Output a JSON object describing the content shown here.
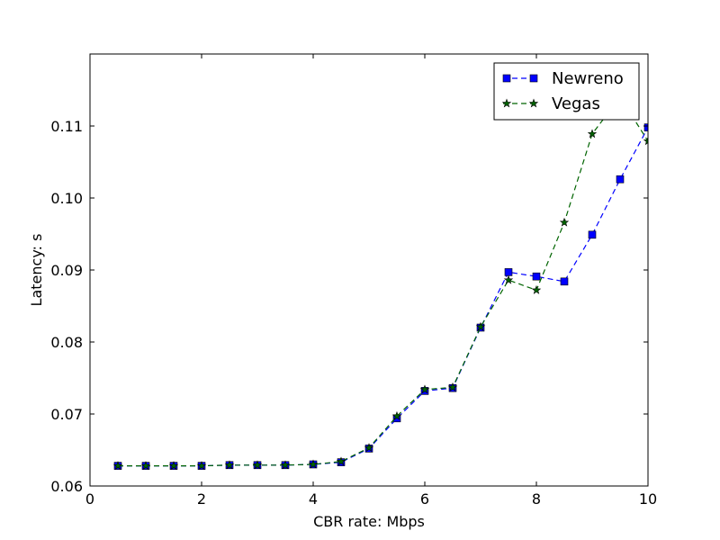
{
  "chart_data": {
    "type": "line",
    "title": "",
    "xlabel": "CBR rate: Mbps",
    "ylabel": "Latency: s",
    "xlim": [
      0,
      10
    ],
    "ylim": [
      0.06,
      0.12
    ],
    "x_ticks": [
      0,
      2,
      4,
      6,
      8,
      10
    ],
    "y_ticks": [
      0.06,
      0.07,
      0.08,
      0.09,
      0.1,
      0.11
    ],
    "x_tick_labels": [
      "0",
      "2",
      "4",
      "6",
      "8",
      "10"
    ],
    "y_tick_labels": [
      "0.06",
      "0.07",
      "0.08",
      "0.09",
      "0.10",
      "0.11"
    ],
    "grid": false,
    "legend_position": "top-right",
    "x": [
      0.5,
      1,
      1.5,
      2,
      2.5,
      3,
      3.5,
      4,
      4.5,
      5,
      5.5,
      6,
      6.5,
      7,
      7.5,
      8,
      8.5,
      9,
      9.5,
      10
    ],
    "series": [
      {
        "name": "Newreno",
        "color": "#0000ff",
        "marker": "square",
        "line_style": "dashed",
        "values": [
          0.0628,
          0.0628,
          0.0628,
          0.0628,
          0.0629,
          0.0629,
          0.0629,
          0.063,
          0.0633,
          0.0652,
          0.0694,
          0.0732,
          0.0736,
          0.082,
          0.0897,
          0.0891,
          0.0884,
          0.0949,
          0.1026,
          0.1098
        ]
      },
      {
        "name": "Vegas",
        "color": "#006400",
        "marker": "star",
        "line_style": "dashed",
        "values": [
          0.0628,
          0.0628,
          0.0628,
          0.0628,
          0.0629,
          0.0629,
          0.0629,
          0.063,
          0.0634,
          0.0653,
          0.0697,
          0.0734,
          0.0737,
          0.0821,
          0.0886,
          0.0872,
          0.0966,
          0.1089,
          0.114,
          0.1079
        ]
      }
    ]
  }
}
